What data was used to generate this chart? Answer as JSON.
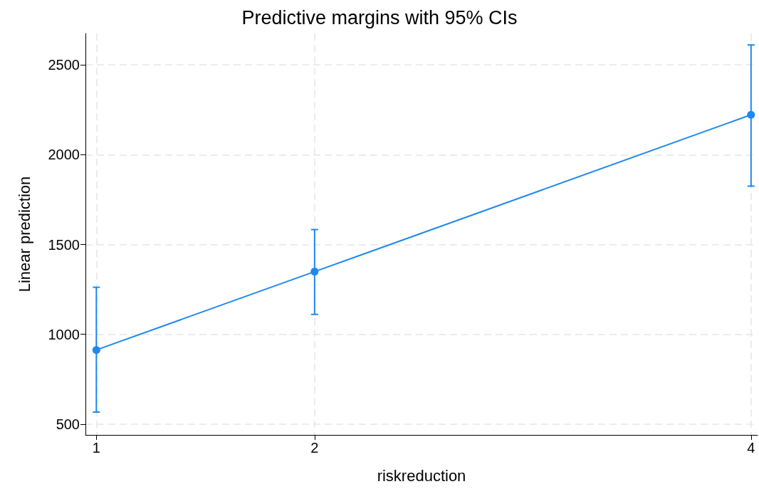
{
  "chart_data": {
    "type": "line",
    "title": "Predictive margins with 95% CIs",
    "xlabel": "riskreduction",
    "ylabel": "Linear prediction",
    "x": [
      1,
      2,
      4
    ],
    "series": [
      {
        "color": "#1e88f0",
        "values": [
          913,
          1349,
          2222
        ],
        "errors": [
          [
            567,
            1262
          ],
          [
            1111,
            1583
          ],
          [
            1825,
            2611
          ]
        ]
      }
    ],
    "xlim": [
      0.95,
      4.03
    ],
    "xticks": [
      1,
      2,
      4
    ],
    "ylim": [
      440,
      2675
    ],
    "yticks": [
      500,
      1000,
      1500,
      2000,
      2500
    ],
    "grid": true,
    "marker": "circle",
    "line_style": "solid"
  }
}
